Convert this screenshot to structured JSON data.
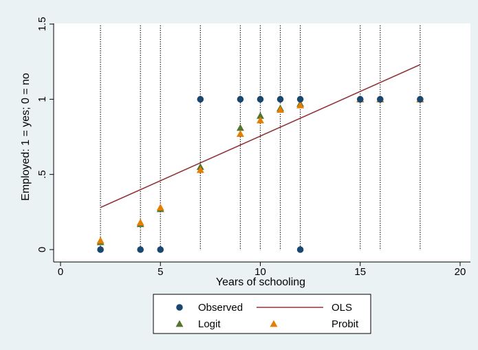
{
  "chart_data": {
    "type": "scatter",
    "title": "",
    "xlabel": "Years of schooling",
    "ylabel": "Employed: 1 = yes; 0 = no",
    "xlim": [
      0,
      20
    ],
    "ylim": [
      0,
      1.5
    ],
    "x_ticks": [
      0,
      5,
      10,
      15,
      20
    ],
    "y_ticks": [
      0,
      0.5,
      1,
      1.5
    ],
    "x_tick_labels": [
      "0",
      "5",
      "10",
      "15",
      "20"
    ],
    "y_tick_labels": [
      "0",
      ".5",
      "1",
      "1.5"
    ],
    "grid": false,
    "legend_position": "bottom",
    "vertical_reference_lines": [
      2,
      4,
      5,
      7,
      9,
      10,
      11,
      12,
      15,
      16,
      18
    ],
    "series": [
      {
        "name": "Observed",
        "marker": "circle",
        "color": "#1a476f",
        "points": [
          [
            2,
            0
          ],
          [
            4,
            0
          ],
          [
            5,
            0
          ],
          [
            7,
            1
          ],
          [
            9,
            1
          ],
          [
            10,
            1
          ],
          [
            11,
            1
          ],
          [
            12,
            1
          ],
          [
            12,
            0
          ],
          [
            15,
            1
          ],
          [
            16,
            1
          ],
          [
            18,
            1
          ]
        ]
      },
      {
        "name": "OLS",
        "marker": "line",
        "color": "#90353b",
        "points": [
          [
            2,
            0.28
          ],
          [
            18,
            1.23
          ]
        ]
      },
      {
        "name": "Logit",
        "marker": "triangle",
        "color": "#55752f",
        "points": [
          [
            2,
            0.05
          ],
          [
            4,
            0.17
          ],
          [
            5,
            0.27
          ],
          [
            7,
            0.55
          ],
          [
            9,
            0.81
          ],
          [
            10,
            0.89
          ],
          [
            11,
            0.94
          ],
          [
            12,
            0.97
          ],
          [
            15,
            1
          ],
          [
            16,
            1
          ],
          [
            18,
            1
          ]
        ]
      },
      {
        "name": "Probit",
        "marker": "triangle",
        "color": "#e37e00",
        "points": [
          [
            2,
            0.06
          ],
          [
            4,
            0.18
          ],
          [
            5,
            0.28
          ],
          [
            7,
            0.53
          ],
          [
            9,
            0.77
          ],
          [
            10,
            0.86
          ],
          [
            11,
            0.93
          ],
          [
            12,
            0.96
          ],
          [
            15,
            1
          ],
          [
            16,
            1
          ],
          [
            18,
            1
          ]
        ]
      }
    ],
    "legend": [
      {
        "label": "Observed",
        "series": "Observed"
      },
      {
        "label": "OLS",
        "series": "OLS"
      },
      {
        "label": "Logit",
        "series": "Logit"
      },
      {
        "label": "Probit",
        "series": "Probit"
      }
    ]
  }
}
